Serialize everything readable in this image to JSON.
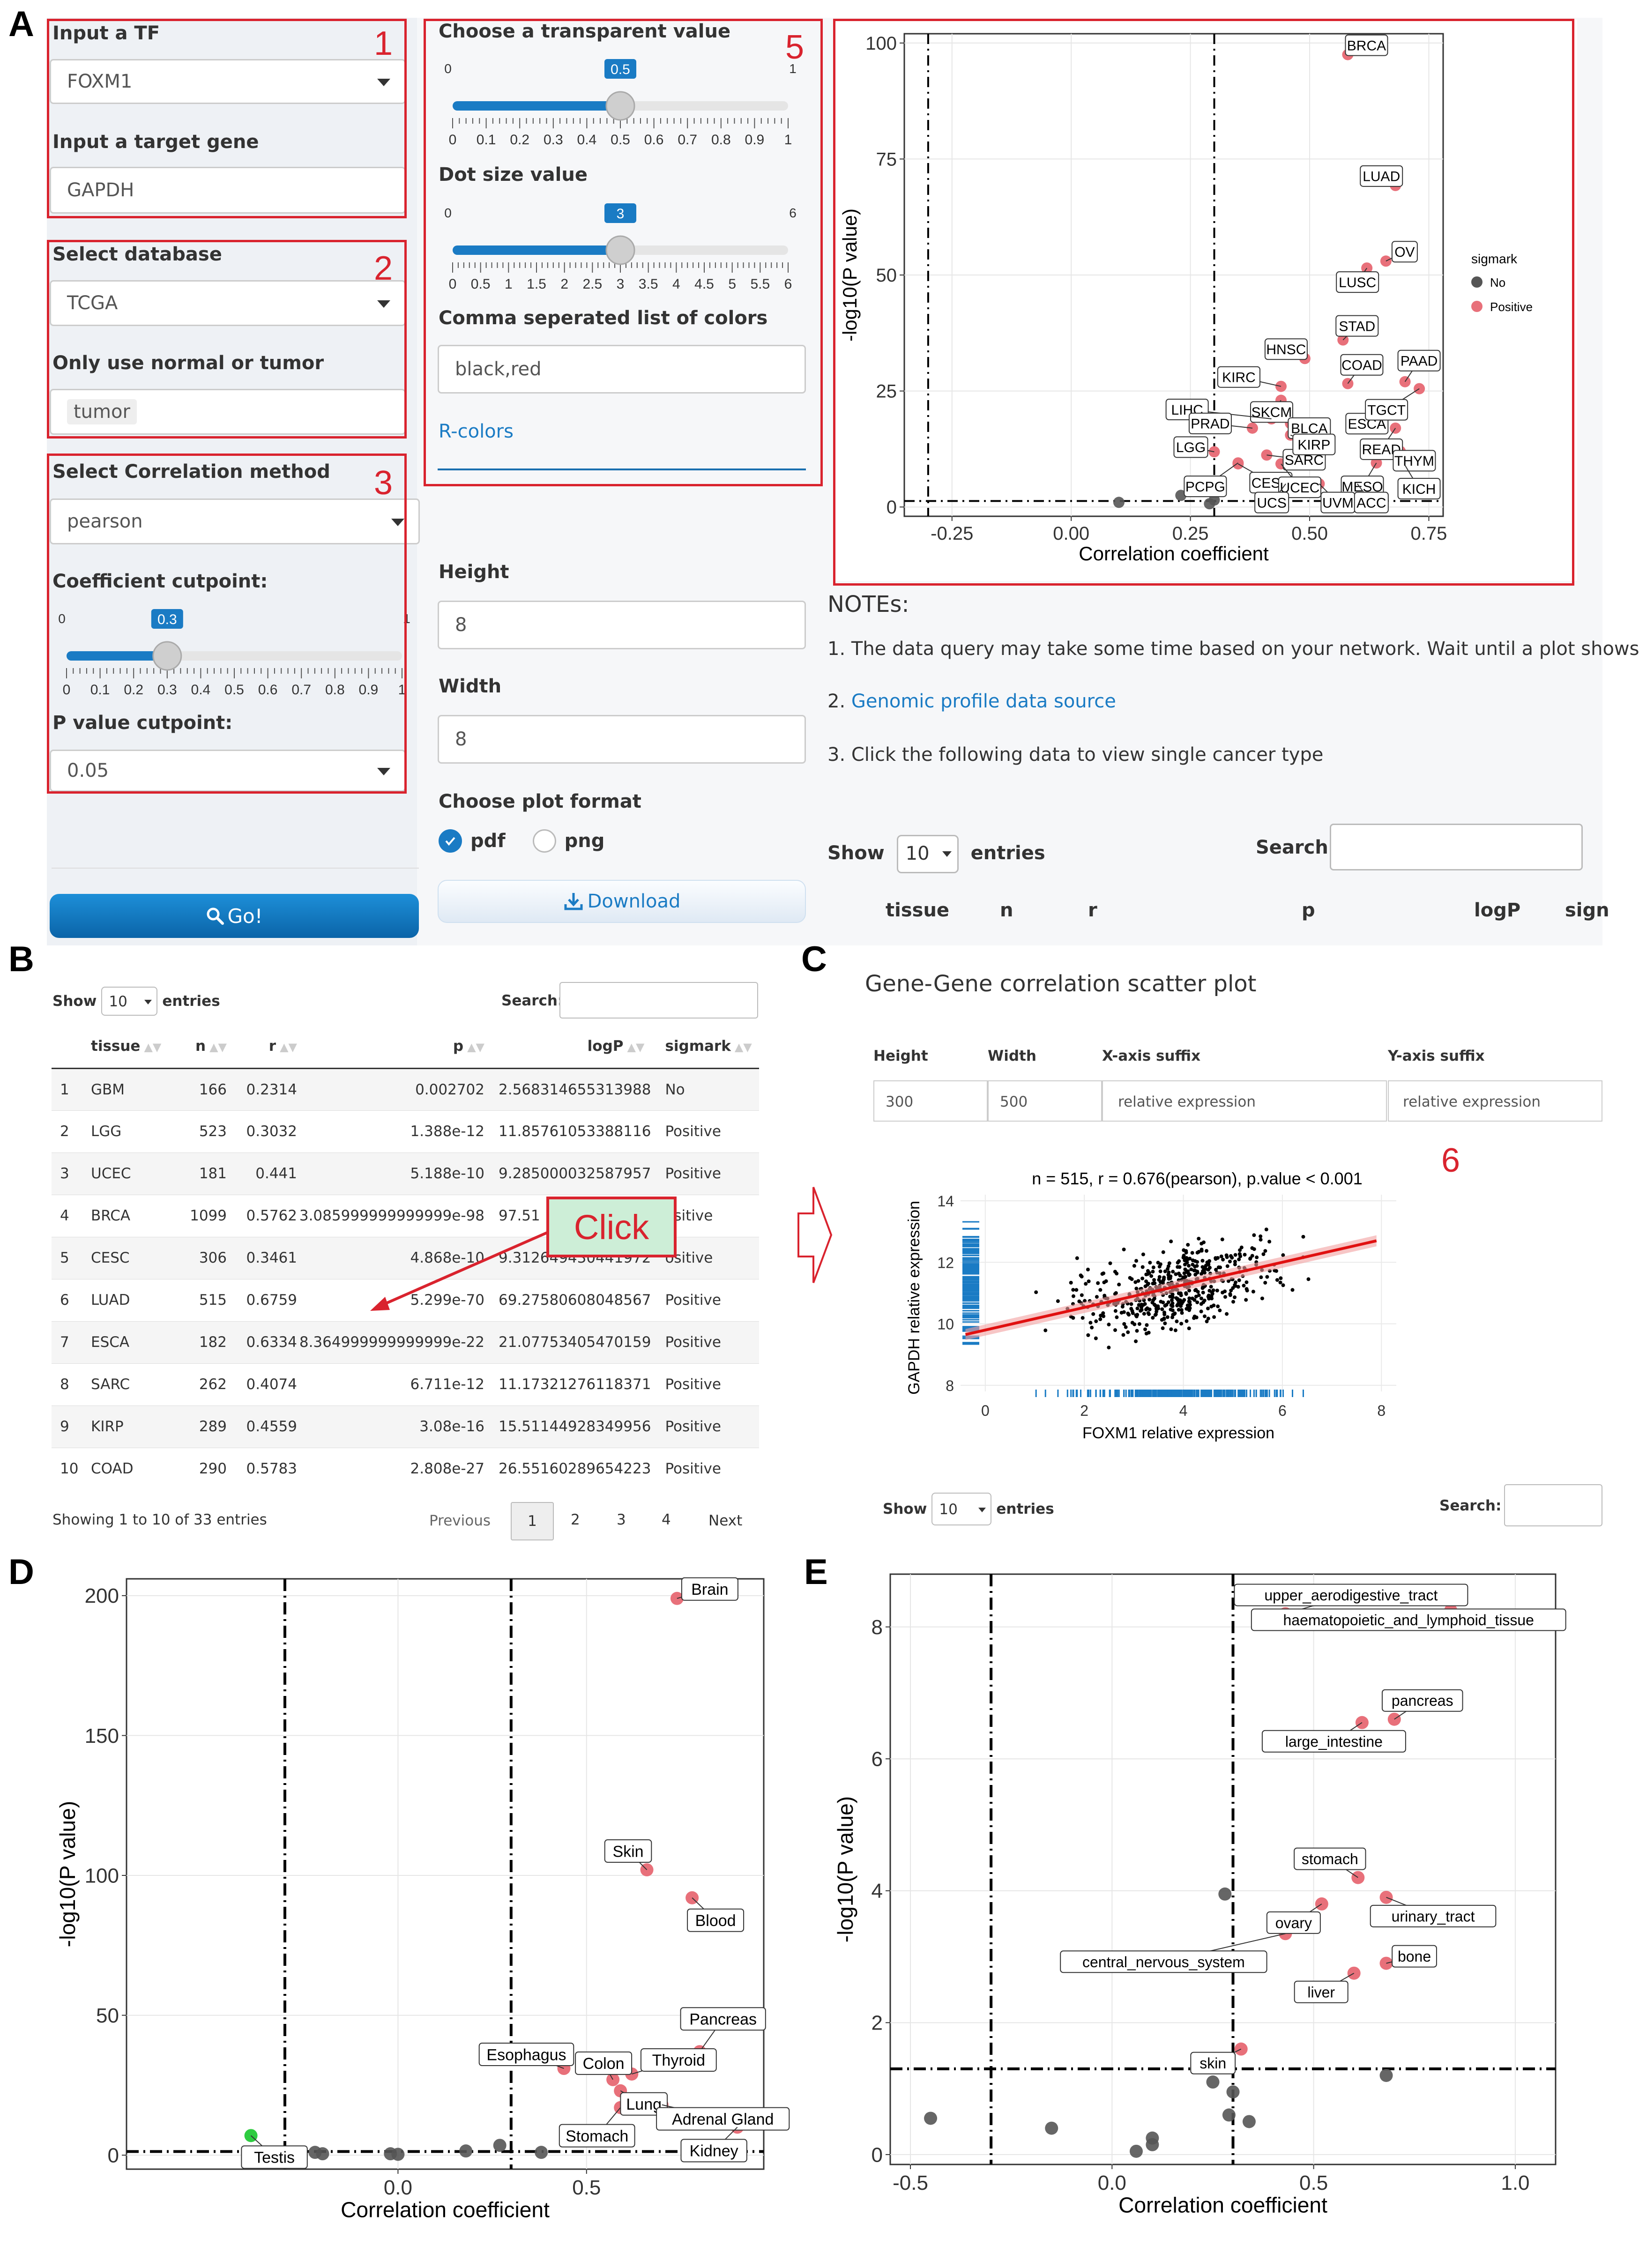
{
  "panels": {
    "a": "A",
    "b": "B",
    "c": "C",
    "d": "D",
    "e": "E"
  },
  "box_numbers": [
    "1",
    "2",
    "3",
    "5",
    "6"
  ],
  "sidebar": {
    "tf_label": "Input a TF",
    "tf_value": "FOXM1",
    "gene_label": "Input a target gene",
    "gene_value": "GAPDH",
    "db_label": "Select database",
    "db_value": "TCGA",
    "normal_tumor_label": "Only use normal or tumor",
    "normal_tumor_value": "tumor",
    "corr_method_label": "Select Correlation method",
    "corr_method_value": "pearson",
    "coef_label": "Coefficient cutpoint:",
    "coef_min": "0",
    "coef_max": "1",
    "coef_value": "0.3",
    "coef_fraction": 0.3,
    "coef_ticks": [
      "0",
      "0.1",
      "0.2",
      "0.3",
      "0.4",
      "0.5",
      "0.6",
      "0.7",
      "0.8",
      "0.9",
      "1"
    ],
    "p_label": "P value cutpoint:",
    "p_value": "0.05",
    "go_label": "Go!"
  },
  "options": {
    "transparent_label": "Choose a transparent value",
    "transparent_min": "0",
    "transparent_max": "1",
    "transparent_value": "0.5",
    "transparent_fraction": 0.5,
    "transparent_ticks": [
      "0",
      "0.1",
      "0.2",
      "0.3",
      "0.4",
      "0.5",
      "0.6",
      "0.7",
      "0.8",
      "0.9",
      "1"
    ],
    "dotsize_label": "Dot size value",
    "dotsize_min": "0",
    "dotsize_max": "6",
    "dotsize_value": "3",
    "dotsize_fraction": 0.5,
    "dotsize_ticks": [
      "0",
      "0.5",
      "1",
      "1.5",
      "2",
      "2.5",
      "3",
      "3.5",
      "4",
      "4.5",
      "5",
      "5.5",
      "6"
    ],
    "colors_label": "Comma seperated list of colors",
    "colors_value": "black,red",
    "rcolors_link": "R-colors",
    "height_label": "Height",
    "height_value": "8",
    "width_label": "Width",
    "width_value": "8",
    "format_label": "Choose plot format",
    "format_pdf": "pdf",
    "format_png": "png",
    "download_label": "Download"
  },
  "notes": {
    "title": "NOTEs:",
    "n1": "1. The data query may take some time based on your network. Wait until a plot shows",
    "n2_prefix": "2. ",
    "n2_link": "Genomic profile data source",
    "n3": "3. Click the following data to view single cancer type",
    "show": "Show",
    "show_value": "10",
    "entries": "entries",
    "search": "Search:",
    "cols": [
      "tissue",
      "n",
      "r",
      "p",
      "logP",
      "sign"
    ]
  },
  "table": {
    "show": "Show",
    "show_value": "10",
    "entries": "entries",
    "search": "Search:",
    "columns": [
      "tissue",
      "n",
      "r",
      "p",
      "logP",
      "sigmark"
    ],
    "rows": [
      [
        "1",
        "GBM",
        "166",
        "0.2314",
        "0.002702",
        "2.568314655313988",
        "No"
      ],
      [
        "2",
        "LGG",
        "523",
        "0.3032",
        "1.388e-12",
        "11.85761053388116",
        "Positive"
      ],
      [
        "3",
        "UCEC",
        "181",
        "0.441",
        "5.188e-10",
        "9.285000032587957",
        "Positive"
      ],
      [
        "4",
        "BRCA",
        "1099",
        "0.5762",
        "3.085999999999999e-98",
        "97.51",
        "ositive"
      ],
      [
        "5",
        "CESC",
        "306",
        "0.3461",
        "4.868e-10",
        "9.312649430441972",
        "ositive"
      ],
      [
        "6",
        "LUAD",
        "515",
        "0.6759",
        "5.299e-70",
        "69.27580608048567",
        "Positive"
      ],
      [
        "7",
        "ESCA",
        "182",
        "0.6334",
        "8.364999999999999e-22",
        "21.07753405470159",
        "Positive"
      ],
      [
        "8",
        "SARC",
        "262",
        "0.4074",
        "6.711e-12",
        "11.17321276118371",
        "Positive"
      ],
      [
        "9",
        "KIRP",
        "289",
        "0.4559",
        "3.08e-16",
        "15.51144928349956",
        "Positive"
      ],
      [
        "10",
        "COAD",
        "290",
        "0.5783",
        "2.808e-27",
        "26.55160289654223",
        "Positive"
      ]
    ],
    "info": "Showing 1 to 10 of 33 entries",
    "prev": "Previous",
    "pages": [
      "1",
      "2",
      "3",
      "4"
    ],
    "next": "Next",
    "click_label": "Click"
  },
  "panel_c": {
    "title": "Gene-Gene correlation scatter plot",
    "height_label": "Height",
    "height_value": "300",
    "width_label": "Width",
    "width_value": "500",
    "xsuffix_label": "X-axis suffix",
    "xsuffix_value": "relative expression",
    "ysuffix_label": "Y-axis suffix",
    "ysuffix_value": "relative expression",
    "show": "Show",
    "show_value": "10",
    "entries": "entries",
    "search": "Search:"
  },
  "chart_data": [
    {
      "id": "A",
      "type": "scatter",
      "xlabel": "Correlation coefficient",
      "ylabel": "-log10(P value)",
      "xlim": [
        -0.35,
        0.78
      ],
      "ylim": [
        -2,
        102
      ],
      "xticks": [
        "-0.25",
        "0.00",
        "0.25",
        "0.50",
        "0.75"
      ],
      "xtick_values": [
        -0.25,
        0,
        0.25,
        0.5,
        0.75
      ],
      "yticks": [
        "0",
        "25",
        "50",
        "75",
        "100"
      ],
      "ytick_values": [
        0,
        25,
        50,
        75,
        100
      ],
      "vlines": [
        -0.3,
        0.3
      ],
      "hline": 1.3,
      "legend_title": "sigmark",
      "legend": [
        {
          "name": "No",
          "color": "#555555"
        },
        {
          "name": "Positive",
          "color": "#e8707a"
        }
      ],
      "points_no": [
        [
          0.1,
          1.0
        ],
        [
          0.23,
          2.5
        ],
        [
          0.3,
          1.5
        ],
        [
          0.3,
          4
        ],
        [
          0.29,
          0.7
        ]
      ],
      "points_pos": [
        {
          "label": "BRCA",
          "x": 0.58,
          "y": 97.5
        },
        {
          "label": "LUAD",
          "x": 0.68,
          "y": 69.3
        },
        {
          "label": "OV",
          "x": 0.66,
          "y": 53
        },
        {
          "label": "LUSC",
          "x": 0.62,
          "y": 51.5
        },
        {
          "label": "STAD",
          "x": 0.57,
          "y": 36
        },
        {
          "label": "PAAD",
          "x": 0.7,
          "y": 27
        },
        {
          "label": "HNSC",
          "x": 0.49,
          "y": 32
        },
        {
          "label": "COAD",
          "x": 0.58,
          "y": 26.6
        },
        {
          "label": "KIRC",
          "x": 0.44,
          "y": 26
        },
        {
          "label": "SKCM",
          "x": 0.44,
          "y": 23
        },
        {
          "label": "ESCA",
          "x": 0.63,
          "y": 21
        },
        {
          "label": "TGCT",
          "x": 0.73,
          "y": 25.5
        },
        {
          "label": "LIHC",
          "x": 0.42,
          "y": 19
        },
        {
          "label": "PRAD",
          "x": 0.38,
          "y": 17
        },
        {
          "label": "BLCA",
          "x": 0.46,
          "y": 18
        },
        {
          "label": "READ",
          "x": 0.68,
          "y": 17
        },
        {
          "label": "LGG",
          "x": 0.3,
          "y": 11.9
        },
        {
          "label": "SARC",
          "x": 0.41,
          "y": 11.2
        },
        {
          "label": "KIRP",
          "x": 0.46,
          "y": 15.5
        },
        {
          "label": "THYM",
          "x": 0.69,
          "y": 12
        },
        {
          "label": "PCPG",
          "x": 0.35,
          "y": 9.5
        },
        {
          "label": "CESC",
          "x": 0.35,
          "y": 9.3
        },
        {
          "label": "UCEC",
          "x": 0.44,
          "y": 9.3
        },
        {
          "label": "MESO",
          "x": 0.64,
          "y": 9.5
        },
        {
          "label": "KICH",
          "x": 0.7,
          "y": 9
        },
        {
          "label": "UCS",
          "x": 0.45,
          "y": 5
        },
        {
          "label": "UVM",
          "x": 0.52,
          "y": 5
        },
        {
          "label": "ACC",
          "x": 0.6,
          "y": 5
        }
      ]
    },
    {
      "id": "C",
      "type": "scatter",
      "title": "n = 515, r = 0.676(pearson), p.value < 0.001",
      "xlabel": "FOXM1 relative expression",
      "ylabel": "GAPDH relative expression",
      "xlim": [
        -0.5,
        8.3
      ],
      "ylim": [
        7.8,
        14.2
      ],
      "xticks": [
        "0",
        "2",
        "4",
        "6",
        "8"
      ],
      "xtick_values": [
        0,
        2,
        4,
        6,
        8
      ],
      "yticks": [
        "8",
        "10",
        "12",
        "14"
      ],
      "ytick_values": [
        8,
        10,
        12,
        14
      ],
      "fit": {
        "x0": -0.4,
        "y0": 9.65,
        "x1": 7.9,
        "y1": 12.7
      },
      "n": 515
    },
    {
      "id": "D",
      "type": "scatter",
      "xlabel": "Correlation coefficient",
      "ylabel": "-log10(P value)",
      "xlim": [
        -0.72,
        0.97
      ],
      "ylim": [
        -5,
        206
      ],
      "xticks": [
        "0.0",
        "0.5"
      ],
      "xtick_values": [
        0,
        0.5
      ],
      "yticks": [
        "0",
        "50",
        "100",
        "150",
        "200"
      ],
      "ytick_values": [
        0,
        50,
        100,
        150,
        200
      ],
      "vlines": [
        -0.3,
        0.3
      ],
      "hline": 1.3,
      "points_no": [
        [
          -0.22,
          1
        ],
        [
          -0.2,
          0.5
        ],
        [
          -0.02,
          0.5
        ],
        [
          0,
          0.3
        ],
        [
          0.18,
          1.5
        ],
        [
          0.27,
          3.5
        ],
        [
          0.38,
          1
        ]
      ],
      "points_neg": [
        {
          "label": "Testis",
          "x": -0.39,
          "y": 7
        }
      ],
      "points_pos": [
        {
          "label": "Brain",
          "x": 0.74,
          "y": 199
        },
        {
          "label": "Skin",
          "x": 0.66,
          "y": 102
        },
        {
          "label": "Blood",
          "x": 0.78,
          "y": 92
        },
        {
          "label": "Pancreas",
          "x": 0.8,
          "y": 37
        },
        {
          "label": "Esophagus",
          "x": 0.44,
          "y": 31
        },
        {
          "label": "Colon",
          "x": 0.57,
          "y": 27
        },
        {
          "label": "Thyroid",
          "x": 0.62,
          "y": 29
        },
        {
          "label": "Lung",
          "x": 0.59,
          "y": 23
        },
        {
          "label": "Adrenal Gland",
          "x": 0.7,
          "y": 18
        },
        {
          "label": "Stomach",
          "x": 0.59,
          "y": 17
        },
        {
          "label": "Kidney",
          "x": 0.9,
          "y": 10
        }
      ]
    },
    {
      "id": "E",
      "type": "scatter",
      "xlabel": "Correlation coefficient",
      "ylabel": "-log10(P value)",
      "xlim": [
        -0.55,
        1.1
      ],
      "ylim": [
        -0.15,
        8.8
      ],
      "xticks": [
        "-0.5",
        "0.0",
        "0.5",
        "1.0"
      ],
      "xtick_values": [
        -0.5,
        0,
        0.5,
        1
      ],
      "yticks": [
        "0",
        "2",
        "4",
        "6",
        "8"
      ],
      "ytick_values": [
        0,
        2,
        4,
        6,
        8
      ],
      "vlines": [
        -0.3,
        0.3
      ],
      "hline": 1.3,
      "points_no": [
        [
          -0.45,
          0.55
        ],
        [
          -0.15,
          0.4
        ],
        [
          0.06,
          0.05
        ],
        [
          0.1,
          0.25
        ],
        [
          0.1,
          0.15
        ],
        [
          0.25,
          1.1
        ],
        [
          0.28,
          3.95
        ],
        [
          0.29,
          0.6
        ],
        [
          0.3,
          0.95
        ],
        [
          0.34,
          0.5
        ],
        [
          0.68,
          1.2
        ]
      ],
      "points_pos": [
        {
          "label": "upper_aerodigestive_tract",
          "x": 0.43,
          "y": 8.2
        },
        {
          "label": "haematopoietic_and_lymphoid_tissue",
          "x": 0.84,
          "y": 8.25
        },
        {
          "label": "pancreas",
          "x": 0.7,
          "y": 6.6
        },
        {
          "label": "large_intestine",
          "x": 0.62,
          "y": 6.55
        },
        {
          "label": "stomach",
          "x": 0.61,
          "y": 4.2
        },
        {
          "label": "ovary",
          "x": 0.52,
          "y": 3.8
        },
        {
          "label": "urinary_tract",
          "x": 0.68,
          "y": 3.9
        },
        {
          "label": "central_nervous_system",
          "x": 0.43,
          "y": 3.35
        },
        {
          "label": "bone",
          "x": 0.68,
          "y": 2.9
        },
        {
          "label": "liver",
          "x": 0.6,
          "y": 2.75
        },
        {
          "label": "skin",
          "x": 0.32,
          "y": 1.6
        }
      ]
    }
  ]
}
